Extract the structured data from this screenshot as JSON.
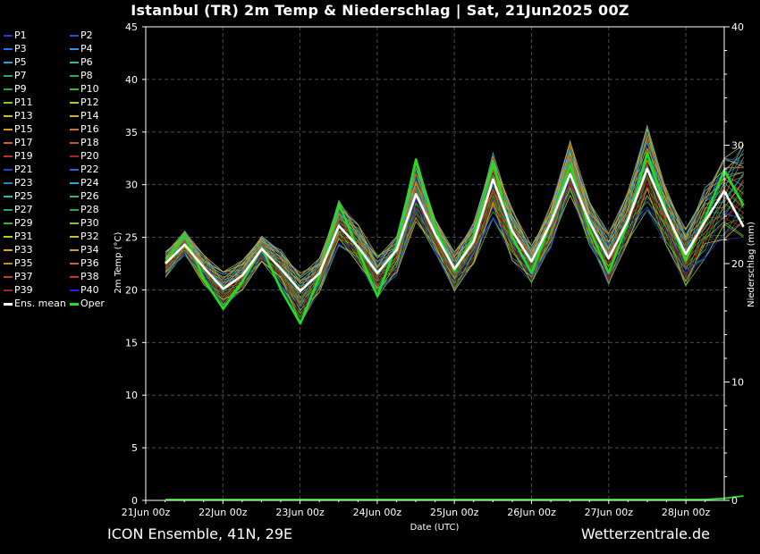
{
  "header": {
    "title": "Istanbul  (TR)  2m Temp & Niederschlag | Sat, 21Jun2025 00Z"
  },
  "footer": {
    "left": "ICON Ensemble, 41N, 29E",
    "right": "Wetterzentrale.de"
  },
  "colors": {
    "background": "#000000",
    "grid": "#555555",
    "ens_mean": "#ffffff",
    "oper": "#22dd22",
    "precip": "#22dd22"
  },
  "chart_data": {
    "type": "line",
    "title": "Istanbul  (TR)  2m Temp & Niederschlag | Sat, 21Jun2025 00Z",
    "xlabel": "Date (UTC)",
    "ylabel": "2m Temp (°C)",
    "y2label": "Niederschlag (mm)",
    "ylim": [
      0,
      45
    ],
    "y2lim": [
      0,
      40
    ],
    "yticks": [
      0,
      5,
      10,
      15,
      20,
      25,
      30,
      35,
      40,
      45
    ],
    "y2ticks": [
      0,
      10,
      20,
      30,
      40
    ],
    "grid": true,
    "legend_position": "left",
    "xticks": [
      "21Jun 00z",
      "22Jun 00z",
      "23Jun 00z",
      "24Jun 00z",
      "25Jun 00z",
      "26Jun 00z",
      "27Jun 00z",
      "28Jun 00z"
    ],
    "x_hours": [
      0,
      6,
      12,
      18,
      24,
      30,
      36,
      42,
      48,
      54,
      60,
      66,
      72,
      78,
      84,
      90,
      96,
      102,
      108,
      114,
      120,
      126,
      132,
      138,
      144,
      150,
      156,
      162,
      168,
      174,
      180
    ],
    "ens_mean": [
      22.5,
      24.3,
      22.1,
      20.1,
      21.4,
      23.9,
      22.0,
      19.9,
      21.6,
      26.1,
      24.1,
      21.6,
      23.8,
      29.1,
      25.3,
      22.0,
      24.6,
      30.5,
      25.6,
      22.7,
      26.4,
      31.0,
      26.5,
      23.0,
      26.6,
      31.5,
      27.3,
      23.4,
      26.5,
      29.4,
      26.0
    ],
    "oper": [
      22.6,
      25.3,
      21.0,
      18.2,
      20.8,
      24.0,
      20.0,
      16.8,
      21.3,
      28.2,
      23.8,
      19.4,
      24.3,
      32.4,
      26.0,
      21.8,
      25.1,
      32.1,
      25.0,
      21.6,
      26.5,
      31.9,
      25.8,
      21.6,
      26.4,
      33.0,
      27.4,
      22.8,
      26.8,
      31.4,
      28.0
    ],
    "ens_min": [
      21.2,
      23.3,
      20.5,
      18.2,
      20.0,
      22.7,
      20.4,
      16.8,
      19.8,
      24.2,
      22.5,
      19.3,
      21.4,
      26.5,
      23.5,
      19.9,
      22.5,
      26.8,
      22.8,
      20.7,
      24.0,
      29.0,
      24.3,
      20.5,
      24.5,
      27.6,
      24.2,
      20.4,
      23.0,
      24.8,
      25.0
    ],
    "ens_max": [
      23.6,
      25.6,
      23.3,
      21.7,
      22.8,
      25.1,
      23.8,
      21.6,
      23.0,
      28.5,
      26.2,
      23.2,
      25.1,
      32.4,
      26.7,
      23.6,
      26.4,
      33.0,
      27.7,
      24.2,
      28.1,
      34.1,
      28.4,
      25.4,
      29.3,
      35.6,
      29.6,
      25.8,
      29.7,
      32.5,
      33.8
    ],
    "precip": [
      0,
      0,
      0,
      0,
      0,
      0,
      0,
      0,
      0,
      0,
      0,
      0,
      0,
      0,
      0,
      0,
      0,
      0,
      0,
      0,
      0,
      0,
      0,
      0,
      0,
      0,
      0,
      0,
      0,
      0.1,
      0.3
    ],
    "legend": [
      {
        "name": "P1",
        "color": "#3333cc"
      },
      {
        "name": "P2",
        "color": "#2255dd"
      },
      {
        "name": "P3",
        "color": "#2277ee"
      },
      {
        "name": "P4",
        "color": "#2299ee"
      },
      {
        "name": "P5",
        "color": "#22aacc"
      },
      {
        "name": "P6",
        "color": "#22bbaa"
      },
      {
        "name": "P7",
        "color": "#22aa77"
      },
      {
        "name": "P8",
        "color": "#22aa55"
      },
      {
        "name": "P9",
        "color": "#22aa33"
      },
      {
        "name": "P10",
        "color": "#33bb22"
      },
      {
        "name": "P11",
        "color": "#88cc22"
      },
      {
        "name": "P12",
        "color": "#aacc33"
      },
      {
        "name": "P13",
        "color": "#ccbb22"
      },
      {
        "name": "P14",
        "color": "#ddaa22"
      },
      {
        "name": "P15",
        "color": "#dd9922"
      },
      {
        "name": "P16",
        "color": "#cc7722"
      },
      {
        "name": "P17",
        "color": "#cc6622"
      },
      {
        "name": "P18",
        "color": "#bb5522"
      },
      {
        "name": "P19",
        "color": "#bb3322"
      },
      {
        "name": "P20",
        "color": "#aa2222"
      },
      {
        "name": "P21",
        "color": "#2244cc"
      },
      {
        "name": "P22",
        "color": "#2266dd"
      },
      {
        "name": "P23",
        "color": "#2288cc"
      },
      {
        "name": "P24",
        "color": "#22aadd"
      },
      {
        "name": "P25",
        "color": "#22bbbb"
      },
      {
        "name": "P26",
        "color": "#22bb99"
      },
      {
        "name": "P27",
        "color": "#22aa66"
      },
      {
        "name": "P28",
        "color": "#22aa44"
      },
      {
        "name": "P29",
        "color": "#33bb22"
      },
      {
        "name": "P30",
        "color": "#77cc22"
      },
      {
        "name": "P31",
        "color": "#bbcc22"
      },
      {
        "name": "P32",
        "color": "#ccbb33"
      },
      {
        "name": "P33",
        "color": "#ddaa22"
      },
      {
        "name": "P34",
        "color": "#dd9922"
      },
      {
        "name": "P35",
        "color": "#cc8822"
      },
      {
        "name": "P36",
        "color": "#cc6622"
      },
      {
        "name": "P37",
        "color": "#bb4422"
      },
      {
        "name": "P38",
        "color": "#cc3322"
      },
      {
        "name": "P39",
        "color": "#aa2222"
      },
      {
        "name": "P40",
        "color": "#2222ee"
      },
      {
        "name": "Ens. mean",
        "color": "#ffffff"
      },
      {
        "name": "Oper",
        "color": "#22dd22"
      }
    ]
  }
}
